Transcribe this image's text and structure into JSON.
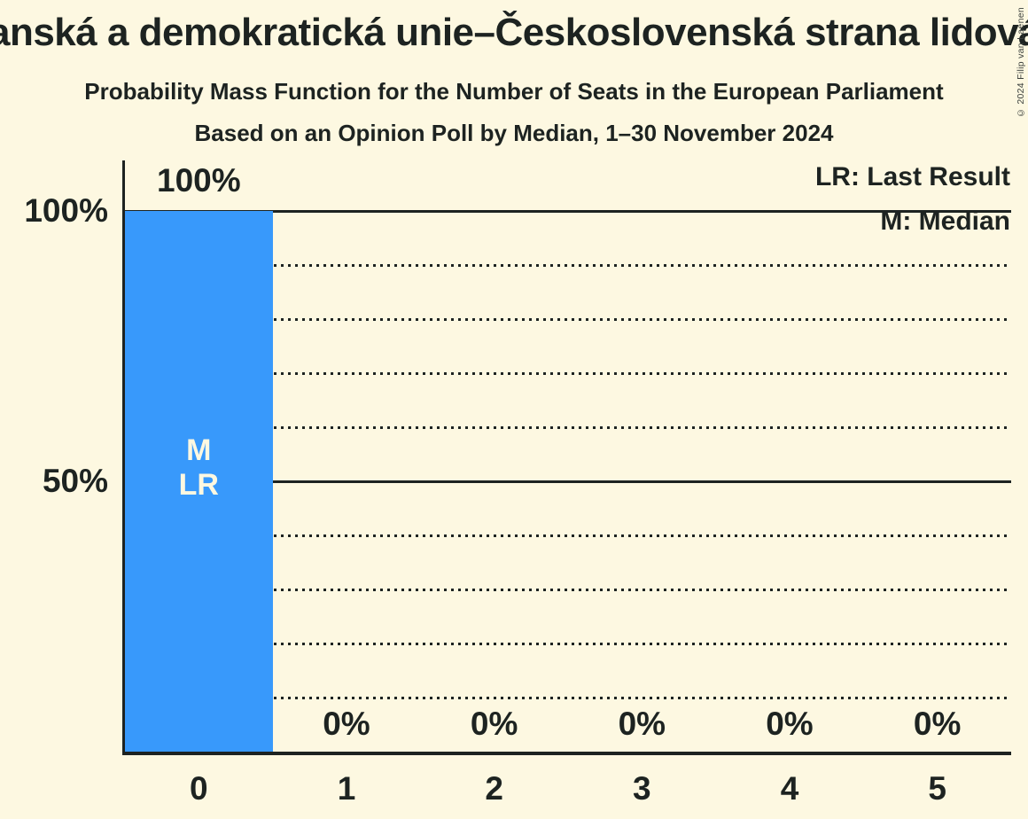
{
  "title": "anská a demokratická unie–Československá strana lidová",
  "subtitle": "Probability Mass Function for the Number of Seats in the European Parliament",
  "poll_note": "Based on an Opinion Poll by Median, 1–30 November 2024",
  "copyright": "© 2024 Filip van Laenen",
  "legend": {
    "last_result": "LR: Last Result",
    "median": "M: Median"
  },
  "colors": {
    "background": "#FDF8E1",
    "bar": "#3899FB",
    "text": "#1D2321",
    "bar_label_text": "#FDF8E1"
  },
  "chart_data": {
    "type": "bar",
    "title": "Probability Mass Function for the Number of Seats in the European Parliament",
    "xlabel": "",
    "ylabel": "",
    "categories": [
      "0",
      "1",
      "2",
      "3",
      "4",
      "5"
    ],
    "values": [
      100,
      0,
      0,
      0,
      0,
      0
    ],
    "value_labels": [
      "100%",
      "0%",
      "0%",
      "0%",
      "0%",
      "0%"
    ],
    "bar_annotations": {
      "0": [
        "M",
        "LR"
      ]
    },
    "ylim": [
      0,
      100
    ],
    "y_ticks": [
      {
        "label": "100%",
        "value": 100
      },
      {
        "label": "50%",
        "value": 50
      }
    ],
    "gridlines": {
      "solid": [
        100,
        50
      ],
      "dotted": [
        90,
        80,
        70,
        60,
        40,
        30,
        20,
        10
      ]
    },
    "legend_position": "top-right",
    "legend_entries": [
      "LR: Last Result",
      "M: Median"
    ]
  }
}
